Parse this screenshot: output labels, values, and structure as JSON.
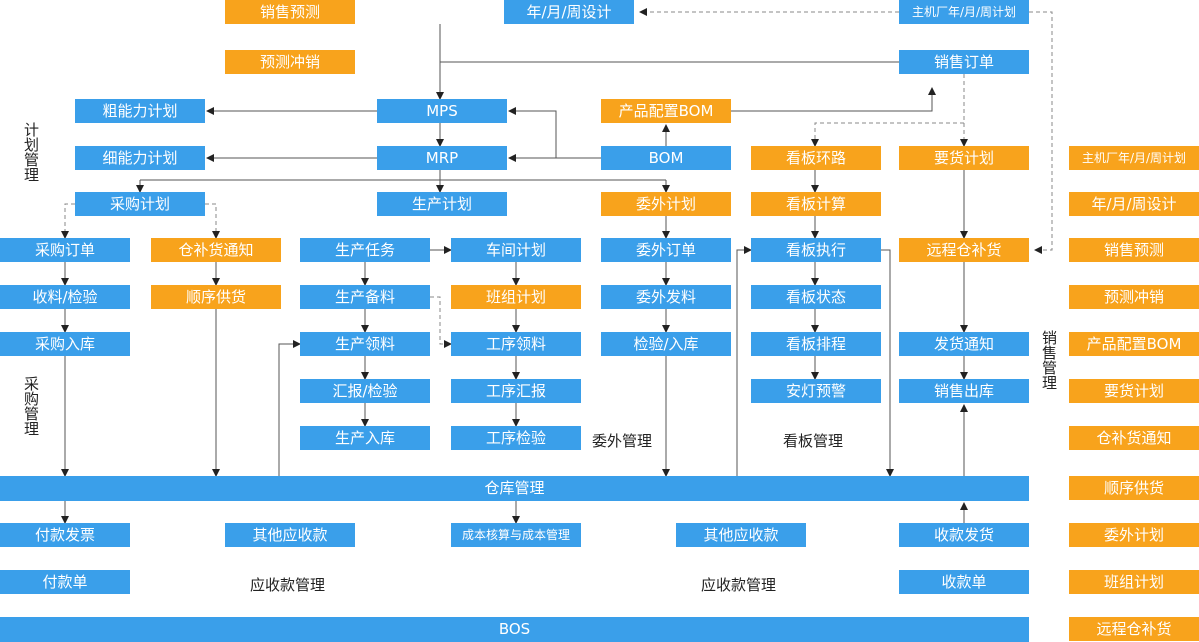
{
  "nodes": [
    {
      "label": "销售预测"
    },
    {
      "label": "年/月/周设计"
    },
    {
      "label": "主机厂年/月/周计划"
    },
    {
      "label": "预测冲销"
    },
    {
      "label": "销售订单"
    },
    {
      "label": "粗能力计划"
    },
    {
      "label": "MPS"
    },
    {
      "label": "产品配置BOM"
    },
    {
      "label": "细能力计划"
    },
    {
      "label": "MRP"
    },
    {
      "label": "BOM"
    },
    {
      "label": "看板环路"
    },
    {
      "label": "要货计划"
    },
    {
      "label": "采购计划"
    },
    {
      "label": "生产计划"
    },
    {
      "label": "委外计划"
    },
    {
      "label": "看板计算"
    },
    {
      "label": "采购订单"
    },
    {
      "label": "仓补货通知"
    },
    {
      "label": "生产任务"
    },
    {
      "label": "车间计划"
    },
    {
      "label": "委外订单"
    },
    {
      "label": "看板执行"
    },
    {
      "label": "远程仓补货"
    },
    {
      "label": "收料/检验"
    },
    {
      "label": "顺序供货"
    },
    {
      "label": "生产备料"
    },
    {
      "label": "班组计划"
    },
    {
      "label": "委外发料"
    },
    {
      "label": "看板状态"
    },
    {
      "label": "采购入库"
    },
    {
      "label": "生产领料"
    },
    {
      "label": "工序领料"
    },
    {
      "label": "检验/入库"
    },
    {
      "label": "看板排程"
    },
    {
      "label": "发货通知"
    },
    {
      "label": "汇报/检验"
    },
    {
      "label": "工序汇报"
    },
    {
      "label": "安灯预警"
    },
    {
      "label": "销售出库"
    },
    {
      "label": "生产入库"
    },
    {
      "label": "工序检验"
    },
    {
      "label": "仓库管理"
    },
    {
      "label": "付款发票"
    },
    {
      "label": "其他应收款"
    },
    {
      "label": "成本核算与成本管理"
    },
    {
      "label": "其他应收款"
    },
    {
      "label": "收款发货"
    },
    {
      "label": "付款单"
    },
    {
      "label": "收款单"
    },
    {
      "label": "BOS"
    }
  ],
  "sections": [
    {
      "label": "计划管理"
    },
    {
      "label": "采购管理"
    },
    {
      "label": "委外管理"
    },
    {
      "label": "看板管理"
    },
    {
      "label": "应收款管理"
    },
    {
      "label": "应收款管理"
    },
    {
      "label": "销售管理"
    }
  ],
  "legend": [
    {
      "label": "主机厂年/月/周计划"
    },
    {
      "label": "年/月/周设计"
    },
    {
      "label": "销售预测"
    },
    {
      "label": "预测冲销"
    },
    {
      "label": "产品配置BOM"
    },
    {
      "label": "要货计划"
    },
    {
      "label": "仓补货通知"
    },
    {
      "label": "顺序供货"
    },
    {
      "label": "委外计划"
    },
    {
      "label": "班组计划"
    },
    {
      "label": "远程仓补货"
    }
  ]
}
